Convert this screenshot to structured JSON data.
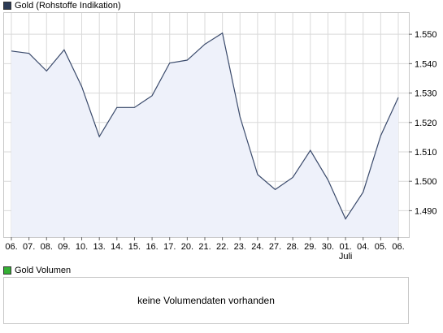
{
  "legend_top": {
    "label": "Gold (Rohstoffe Indikation)",
    "color": "#2b3a55"
  },
  "legend_bottom": {
    "label": "Gold Volumen",
    "color": "#35b035"
  },
  "volume_message": "keine Volumendaten vorhanden",
  "chart_data": {
    "type": "area",
    "title": "",
    "xlabel": "",
    "ylabel": "",
    "categories": [
      "06.",
      "07.",
      "08.",
      "09.",
      "10.",
      "13.",
      "14.",
      "15.",
      "16.",
      "17.",
      "20.",
      "21.",
      "22.",
      "23.",
      "24.",
      "27.",
      "28.",
      "29.",
      "30.",
      "01.",
      "04.",
      "05.",
      "06."
    ],
    "x_sublabels": {
      "19": "Juli"
    },
    "series": [
      {
        "values": [
          1.5443,
          1.5435,
          1.5375,
          1.5447,
          1.5322,
          1.5152,
          1.5251,
          1.5251,
          1.5291,
          1.5402,
          1.5412,
          1.5466,
          1.5504,
          1.5219,
          1.5023,
          1.4972,
          1.5013,
          1.5105,
          1.5005,
          1.4872,
          1.4963,
          1.5155,
          1.5285
        ]
      }
    ],
    "y_ticks": [
      "1.490",
      "1.500",
      "1.510",
      "1.520",
      "1.530",
      "1.540",
      "1.550"
    ],
    "ylim": [
      1.481,
      1.5575
    ],
    "grid": true,
    "line_color": "#3a4a6b",
    "fill_color": "#eef1fa",
    "grid_color": "#d9d9d9",
    "axis_side": "right"
  }
}
